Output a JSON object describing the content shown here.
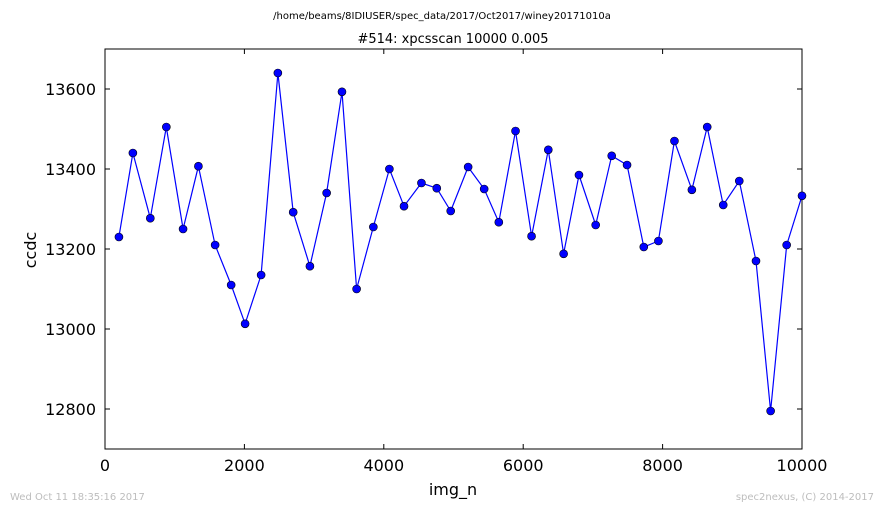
{
  "chart_data": {
    "type": "line",
    "suptitle": "/home/beams/8IDIUSER/spec_data/2017/Oct2017/winey20171010a",
    "title": "#514: xpcsscan 10000 0.005",
    "xlabel": "img_n",
    "ylabel": "ccdc",
    "xlim": [
      0,
      10000
    ],
    "ylim": [
      12700,
      13700
    ],
    "xticks": [
      0,
      2000,
      4000,
      6000,
      8000,
      10000
    ],
    "yticks": [
      12800,
      13000,
      13200,
      13400,
      13600
    ],
    "grid": false,
    "series": [
      {
        "color": "#0000ff",
        "marker": "circle",
        "x": [
          200,
          400,
          650,
          880,
          1120,
          1340,
          1580,
          1810,
          2010,
          2240,
          2480,
          2700,
          2940,
          3180,
          3400,
          3610,
          3850,
          4080,
          4290,
          4540,
          4760,
          4960,
          5210,
          5440,
          5650,
          5890,
          6120,
          6360,
          6580,
          6800,
          7040,
          7270,
          7490,
          7730,
          7940,
          8170,
          8420,
          8640,
          8870,
          9100,
          9340,
          9550,
          9780,
          10000
        ],
        "y": [
          13230,
          13440,
          13277,
          13505,
          13250,
          13407,
          13210,
          13110,
          13013,
          13135,
          13640,
          13292,
          13157,
          13340,
          13593,
          13100,
          13255,
          13400,
          13307,
          13365,
          13352,
          13295,
          13405,
          13350,
          13267,
          13495,
          13232,
          13448,
          13188,
          13385,
          13260,
          13433,
          13410,
          13205,
          13220,
          13470,
          13348,
          13505,
          13310,
          13370,
          13170,
          12795,
          13210,
          13333
        ]
      }
    ]
  },
  "footer": {
    "timestamp": "Wed Oct 11 18:35:16 2017",
    "credit": "spec2nexus, (C) 2014-2017"
  }
}
